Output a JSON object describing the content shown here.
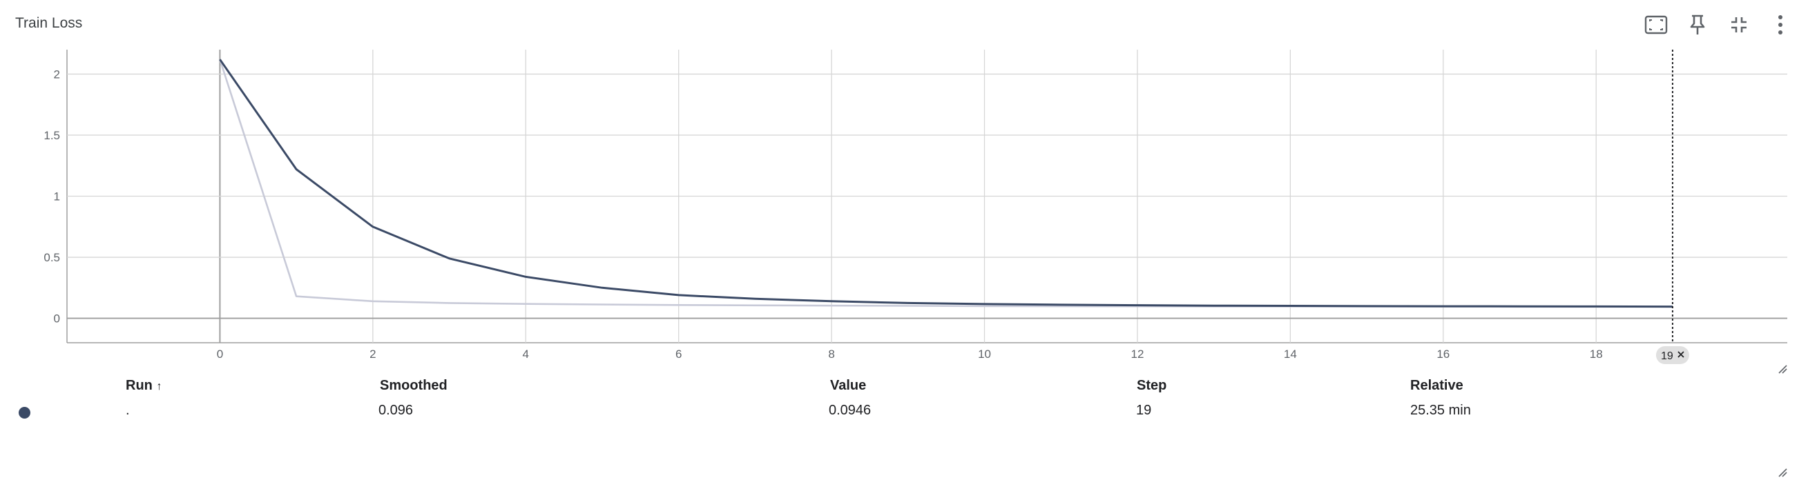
{
  "card": {
    "title": "Train Loss"
  },
  "toolbar": {
    "buttons": [
      {
        "name": "fit-domain-button",
        "icon": "fit-to-screen-icon"
      },
      {
        "name": "pin-button",
        "icon": "pin-icon"
      },
      {
        "name": "collapse-button",
        "icon": "collapse-icon"
      },
      {
        "name": "more-options-button",
        "icon": "more-vert-icon"
      }
    ]
  },
  "colors": {
    "series": "#3b4a66",
    "raw": "#c8cad8",
    "grid": "#d6d6d6",
    "axis": "#9e9e9e",
    "chip_bg": "#e0e0e0"
  },
  "chart_data": {
    "type": "line",
    "title": "Train Loss",
    "xlabel": "",
    "ylabel": "",
    "xlim": [
      -2,
      20.5
    ],
    "ylim": [
      -0.2,
      2.2
    ],
    "x_ticks": [
      0,
      2,
      4,
      6,
      8,
      10,
      12,
      14,
      16,
      18
    ],
    "y_ticks": [
      0,
      0.5,
      1,
      1.5,
      2
    ],
    "y_tick_labels": [
      "0",
      "0.5",
      "1",
      "1.5",
      "2"
    ],
    "grid": true,
    "series": [
      {
        "role": "smoothed",
        "x": [
          0,
          1,
          2,
          3,
          4,
          5,
          6,
          7,
          8,
          9,
          10,
          11,
          12,
          13,
          14,
          15,
          16,
          17,
          18,
          19
        ],
        "values": [
          2.12,
          1.22,
          0.75,
          0.49,
          0.34,
          0.25,
          0.19,
          0.16,
          0.14,
          0.125,
          0.117,
          0.111,
          0.107,
          0.104,
          0.102,
          0.1,
          0.099,
          0.098,
          0.097,
          0.096
        ]
      },
      {
        "role": "value",
        "x": [
          0,
          1,
          2,
          3,
          4,
          5,
          6,
          7,
          8,
          9,
          10,
          11,
          12,
          13,
          14,
          15,
          16,
          17,
          18,
          19
        ],
        "values": [
          2.12,
          0.18,
          0.14,
          0.125,
          0.118,
          0.113,
          0.109,
          0.106,
          0.104,
          0.102,
          0.1,
          0.099,
          0.098,
          0.097,
          0.097,
          0.096,
          0.096,
          0.095,
          0.095,
          0.0946
        ]
      }
    ],
    "cursor_step": 19,
    "cursor_label": "19"
  },
  "table": {
    "headers": {
      "run": "Run",
      "sort_glyph": "↑",
      "smoothed": "Smoothed",
      "value": "Value",
      "step": "Step",
      "relative": "Relative"
    },
    "rows": [
      {
        "run": ".",
        "smoothed": "0.096",
        "value": "0.0946",
        "step": "19",
        "relative": "25.35 min"
      }
    ]
  }
}
